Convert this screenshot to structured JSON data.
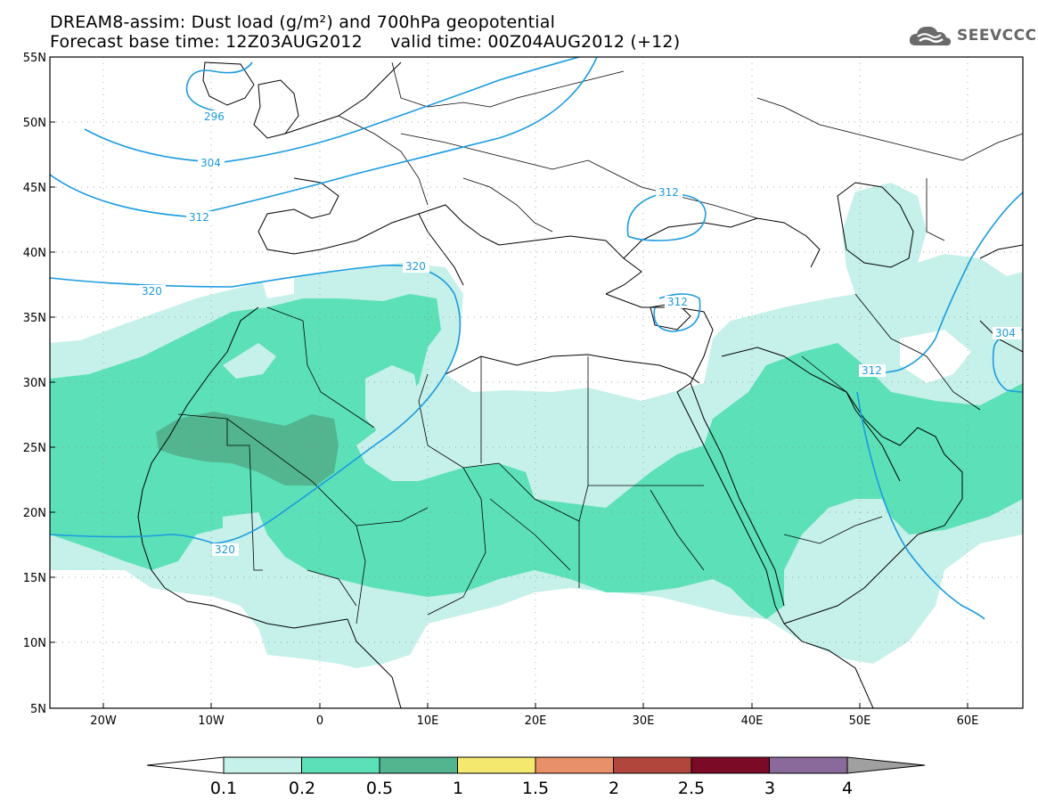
{
  "title_line1": "DREAM8-assim: Dust load (g/m²) and 700hPa geopotential",
  "title_line2": "Forecast base time: 12Z03AUG2012     valid time: 00Z04AUG2012 (+12)",
  "logo": {
    "icon": "cloud-icon",
    "text": "SEEVCCC"
  },
  "lat_labels": [
    "55N",
    "50N",
    "45N",
    "40N",
    "35N",
    "30N",
    "25N",
    "20N",
    "15N",
    "10N",
    "5N"
  ],
  "lon_labels": [
    "20W",
    "10W",
    "0",
    "10E",
    "20E",
    "30E",
    "40E",
    "50E",
    "60E"
  ],
  "contour_labels": [
    "296",
    "304",
    "312",
    "320",
    "320",
    "320",
    "312",
    "312",
    "312",
    "304"
  ],
  "colorbar": {
    "ticks": [
      "0.1",
      "0.2",
      "0.5",
      "1",
      "1.5",
      "2",
      "2.5",
      "3",
      "4"
    ],
    "colors": [
      "#ffffff",
      "#c6f0ea",
      "#5ce0b8",
      "#52b590",
      "#f5e86e",
      "#e8906a",
      "#b0463c",
      "#7a0a26",
      "#8a6a9a",
      "#a0a0a0"
    ]
  },
  "colors": {
    "dust_light": "#c6f0ea",
    "dust_mid": "#5ce0b8",
    "dust_dark": "#52b590",
    "contour": "#1a9be0",
    "coast": "#000000"
  }
}
